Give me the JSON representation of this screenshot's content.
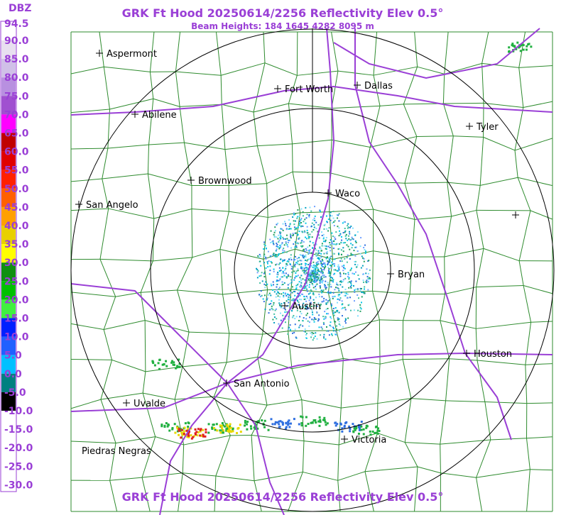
{
  "header": {
    "title": "GRK Ft Hood 20250614/2256 Reflectivity Elev 0.5°",
    "subtitle": "Beam Heights: 184 1645 4282 8095 m"
  },
  "legend": {
    "unit": "DBZ",
    "labels": [
      "94.5",
      "90.0",
      "85.0",
      "80.0",
      "75.0",
      "70.0",
      "65.0",
      "60.0",
      "55.0",
      "50.0",
      "45.0",
      "40.0",
      "35.0",
      "30.0",
      "25.0",
      "20.0",
      "15.0",
      "10.0",
      "5.0",
      "0.0",
      "-5.0",
      "-10.0",
      "-15.0",
      "-20.0",
      "-25.0",
      "-30.0"
    ]
  },
  "cities": [
    "Aspermont",
    "Abilene",
    "Fort Worth",
    "Dallas",
    "Tyler",
    "Brownwood",
    "Waco",
    "San Angelo",
    "Bryan",
    "Austin",
    "Houston",
    "San Antonio",
    "Uvalde",
    "Victoria",
    "Piedras Negras"
  ]
}
